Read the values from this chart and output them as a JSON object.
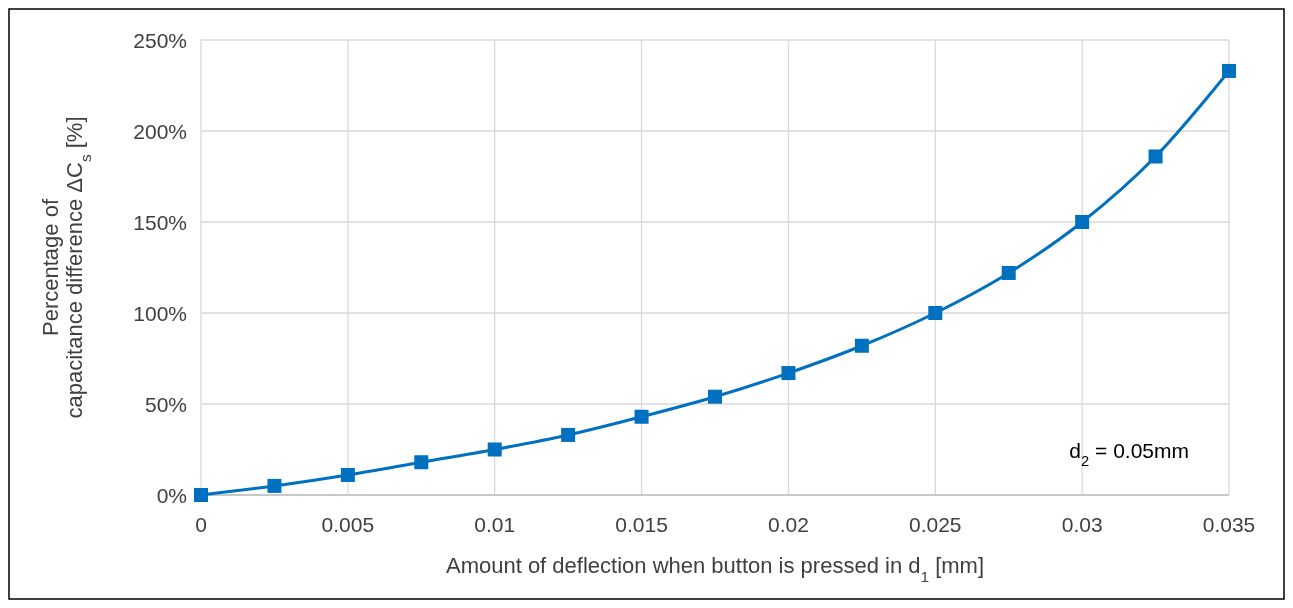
{
  "chart_data": {
    "type": "line",
    "xlabel": "Amount of deflection when button is pressed in d$_{1}$ [mm]",
    "ylabel": "Percentage of\ncapacitance difference ΔC$_{s}$ [%]",
    "annotations": [
      "d$_{2}$ = 0.05mm"
    ],
    "x": [
      0,
      0.0025,
      0.005,
      0.0075,
      0.01,
      0.0125,
      0.015,
      0.0175,
      0.02,
      0.0225,
      0.025,
      0.0275,
      0.03,
      0.0325,
      0.035
    ],
    "series": [
      {
        "color": "#0070c0",
        "values": [
          0,
          5,
          11,
          18,
          25,
          33,
          43,
          54,
          67,
          82,
          100,
          122,
          150,
          186,
          233
        ]
      }
    ],
    "xlim": [
      0,
      0.035
    ],
    "xticks": [
      0,
      0.005,
      0.01,
      0.015,
      0.02,
      0.025,
      0.03,
      0.035
    ],
    "ylim": [
      0,
      250
    ],
    "yticks": [
      {
        "value": 0,
        "label": "0%"
      },
      {
        "value": 50,
        "label": "50%"
      },
      {
        "value": 100,
        "label": "100%"
      },
      {
        "value": 150,
        "label": "150%"
      },
      {
        "value": 200,
        "label": "200%"
      },
      {
        "value": 250,
        "label": "250%"
      }
    ],
    "grid": true,
    "marker": "square",
    "line_style": "solid"
  }
}
